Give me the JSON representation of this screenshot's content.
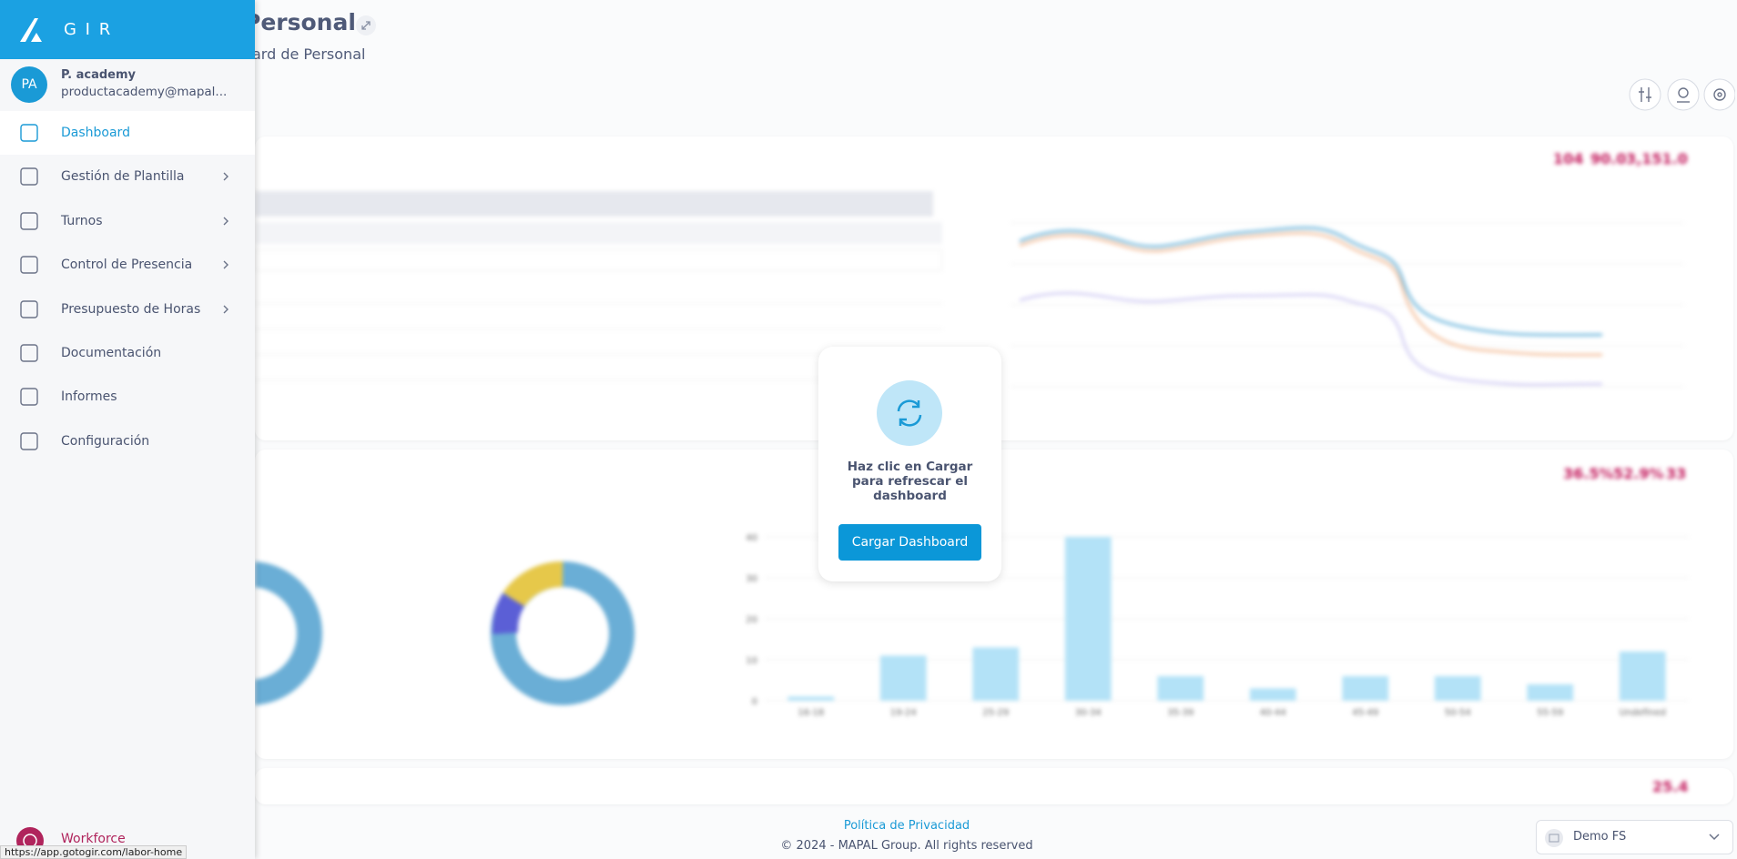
{
  "sidebar": {
    "brand": "G I R",
    "user": {
      "initials": "PA",
      "name": "P. academy",
      "email": "productacademy@mapal..."
    },
    "menu": [
      {
        "label": "Dashboard",
        "active": true
      },
      {
        "label": "Gestión de Plantilla",
        "submenu": true
      },
      {
        "label": "Turnos",
        "submenu": true
      },
      {
        "label": "Control de Presencia",
        "submenu": true
      },
      {
        "label": "Presupuesto de Horas",
        "submenu": true
      },
      {
        "label": "Documentación"
      },
      {
        "label": "Informes"
      },
      {
        "label": "Configuración"
      }
    ],
    "footer": "Workforce",
    "status_url": "https://app.gotogir.com/labor-home"
  },
  "header": {
    "title": "Personal",
    "subtitle": "ard de Personal"
  },
  "kpis": [
    "104",
    "90.0",
    "3,151.0",
    "36.5%",
    "52.9%",
    "33",
    "25.4"
  ],
  "chart_data": {
    "type": "bar",
    "color": "#b3e2f7",
    "categories": [
      "16-18",
      "19-24",
      "25-29",
      "30-34",
      "35-39",
      "40-44",
      "45-49",
      "50-54",
      "55-59",
      "Undefined"
    ],
    "values": [
      1,
      11,
      13,
      40,
      6,
      3,
      6,
      6,
      4,
      12
    ],
    "ylim": [
      0,
      40
    ],
    "yticks": [
      0,
      10,
      20,
      30,
      40
    ],
    "grid": true
  },
  "modal": {
    "message": "Haz clic en Cargar para refrescar el dashboard",
    "button": "Cargar Dashboard"
  },
  "footer": {
    "privacy": "Política de Privacidad",
    "copyright": "© 2024 - MAPAL Group. All rights reserved"
  },
  "site_selector": "Demo FS"
}
